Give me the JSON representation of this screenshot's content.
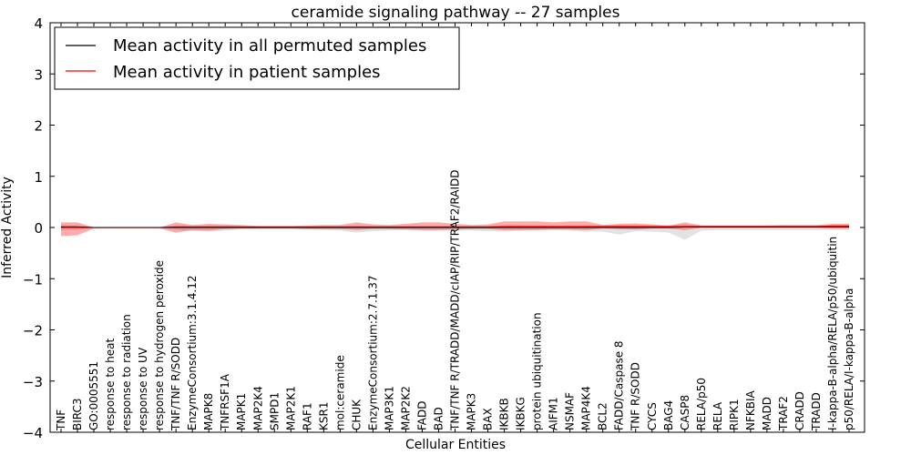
{
  "chart_data": {
    "type": "line",
    "title": "ceramide signaling pathway -- 27 samples",
    "xlabel": "Cellular Entities",
    "ylabel": "Inferred Activity",
    "ylim": [
      -4,
      4
    ],
    "yticks": [
      4,
      3,
      2,
      1,
      0,
      -1,
      -2,
      -3,
      -4
    ],
    "ytick_labels": [
      "4",
      "3",
      "2",
      "1",
      "0",
      "−1",
      "−2",
      "−3",
      "−4"
    ],
    "legend_position": "top-left",
    "categories": [
      "TNF",
      "BIRC3",
      "GO:0005551",
      "response to heat",
      "response to radiation",
      "response to UV",
      "response to hydrogen peroxide",
      "TNF/TNF R/SODD",
      "EnzymeConsortium:3.1.4.12",
      "MAPK8",
      "TNFRSF1A",
      "MAPK1",
      "MAP2K4",
      "SMPD1",
      "MAP2K1",
      "RAF1",
      "KSR1",
      "mol:ceramide",
      "CHUK",
      "EnzymeConsortium:2.7.1.37",
      "MAP3K1",
      "MAP2K2",
      "FADD",
      "BAD",
      "TNF/TNF R/TRADD/MADD/cIAP/RIP/TRAF2/RAIDD",
      "MAPK3",
      "BAX",
      "IKBKB",
      "IKBKG",
      "protein ubiquitination",
      "AIFM1",
      "NSMAF",
      "MAP4K4",
      "BCL2",
      "FADD/Caspase 8",
      "TNF R/SODD",
      "CYCS",
      "BAG4",
      "CASP8",
      "RELA/p50",
      "RELA",
      "RIPK1",
      "NFKBIA",
      "MADD",
      "TRAF2",
      "CRADD",
      "TRADD",
      "I-kappa-B-alpha/RELA/p50/ubiquitin",
      "p50/RELA/I-kappa-B-alpha"
    ],
    "series": [
      {
        "name": "Mean activity in all permuted samples",
        "color": "#000000",
        "values": [
          0.01,
          0.01,
          0.0,
          0.0,
          0.0,
          0.0,
          0.0,
          0.0,
          0.0,
          0.0,
          0.0,
          0.0,
          0.0,
          0.0,
          0.0,
          0.0,
          0.0,
          0.0,
          0.0,
          0.0,
          0.0,
          0.0,
          0.0,
          0.0,
          0.0,
          0.0,
          0.0,
          0.0,
          0.0,
          0.0,
          0.0,
          0.0,
          0.0,
          0.0,
          0.0,
          0.0,
          0.0,
          0.0,
          0.01,
          0.01,
          0.01,
          0.01,
          0.01,
          0.01,
          0.01,
          0.01,
          0.01,
          0.01,
          0.01
        ],
        "band_upper": [
          0.05,
          0.05,
          0.0,
          0.0,
          0.0,
          0.0,
          0.0,
          0.05,
          0.03,
          0.04,
          0.04,
          0.03,
          0.02,
          0.02,
          0.02,
          0.02,
          0.03,
          0.03,
          0.04,
          0.03,
          0.03,
          0.03,
          0.03,
          0.03,
          0.03,
          0.03,
          0.03,
          0.03,
          0.03,
          0.02,
          0.02,
          0.02,
          0.03,
          0.04,
          0.05,
          0.04,
          0.04,
          0.05,
          0.06,
          0.04,
          0.04,
          0.04,
          0.04,
          0.04,
          0.04,
          0.04,
          0.04,
          0.04,
          0.04
        ],
        "band_lower": [
          -0.05,
          -0.05,
          0.0,
          0.0,
          0.0,
          0.0,
          0.0,
          -0.05,
          -0.07,
          -0.08,
          -0.06,
          -0.04,
          -0.03,
          -0.03,
          -0.03,
          -0.04,
          -0.05,
          -0.06,
          -0.1,
          -0.07,
          -0.06,
          -0.05,
          -0.06,
          -0.06,
          -0.06,
          -0.06,
          -0.07,
          -0.08,
          -0.06,
          -0.05,
          -0.05,
          -0.06,
          -0.08,
          -0.08,
          -0.14,
          -0.07,
          -0.08,
          -0.1,
          -0.24,
          -0.06,
          -0.05,
          -0.05,
          -0.05,
          -0.05,
          -0.05,
          -0.05,
          -0.05,
          -0.05,
          -0.05
        ]
      },
      {
        "name": "Mean activity in patient samples",
        "color": "#ff0000",
        "values": [
          0.0,
          0.0,
          0.0,
          0.0,
          0.0,
          0.0,
          0.0,
          0.01,
          0.01,
          0.01,
          0.01,
          0.01,
          0.01,
          0.01,
          0.01,
          0.01,
          0.01,
          0.01,
          0.01,
          0.01,
          0.01,
          0.01,
          0.01,
          0.01,
          0.01,
          0.01,
          0.01,
          0.02,
          0.02,
          0.02,
          0.02,
          0.02,
          0.02,
          0.02,
          0.02,
          0.02,
          0.02,
          0.02,
          0.02,
          0.02,
          0.02,
          0.02,
          0.02,
          0.02,
          0.02,
          0.02,
          0.02,
          0.03,
          0.03
        ],
        "band_upper": [
          0.1,
          0.1,
          0.0,
          0.0,
          0.0,
          0.0,
          0.0,
          0.1,
          0.05,
          0.07,
          0.06,
          0.05,
          0.03,
          0.03,
          0.03,
          0.04,
          0.05,
          0.05,
          0.1,
          0.06,
          0.05,
          0.07,
          0.1,
          0.1,
          0.07,
          0.05,
          0.06,
          0.12,
          0.12,
          0.12,
          0.1,
          0.12,
          0.12,
          0.05,
          0.07,
          0.08,
          0.06,
          0.03,
          0.1,
          0.04,
          0.04,
          0.04,
          0.04,
          0.04,
          0.05,
          0.05,
          0.05,
          0.07,
          0.07
        ],
        "band_lower": [
          -0.17,
          -0.15,
          -0.02,
          -0.02,
          -0.02,
          -0.02,
          -0.02,
          -0.1,
          -0.05,
          -0.06,
          -0.03,
          -0.02,
          -0.02,
          -0.02,
          -0.02,
          -0.03,
          -0.03,
          -0.03,
          -0.05,
          -0.03,
          -0.03,
          -0.04,
          -0.05,
          -0.05,
          -0.04,
          -0.03,
          -0.03,
          -0.05,
          -0.05,
          -0.05,
          -0.04,
          -0.04,
          -0.05,
          -0.02,
          -0.03,
          -0.04,
          -0.02,
          -0.02,
          -0.05,
          -0.01,
          -0.01,
          -0.01,
          -0.01,
          -0.01,
          -0.01,
          -0.01,
          -0.01,
          -0.02,
          -0.02
        ]
      }
    ]
  }
}
